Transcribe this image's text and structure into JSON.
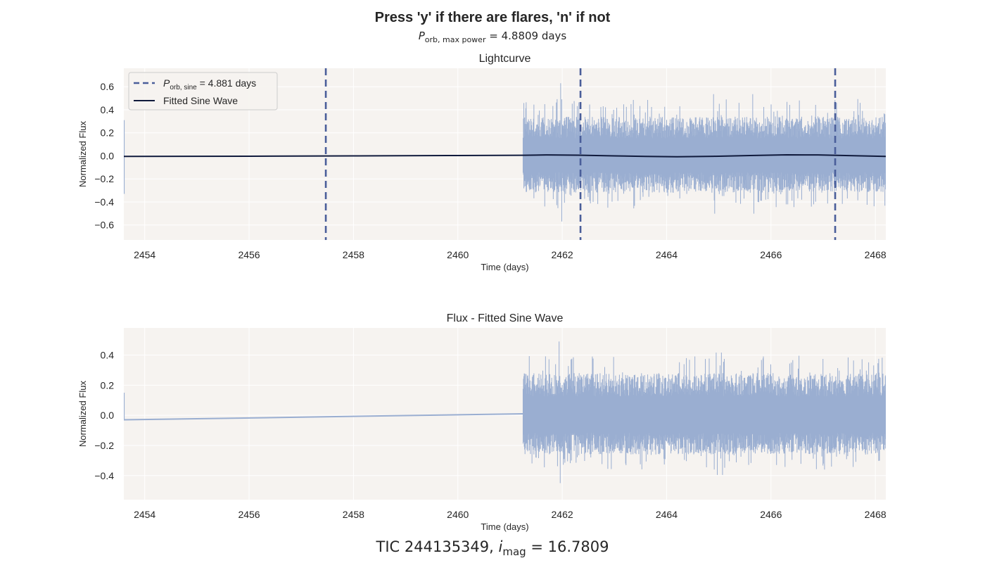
{
  "figure": {
    "suptitle": "Press 'y' if there are flares, 'n' if not",
    "subtitle": {
      "sym": "P",
      "sub": "orb, max power",
      "rest": " = 4.8809 days"
    },
    "footer": {
      "prefix": "TIC 244135349, ",
      "sym": "i",
      "sub": "mag",
      "rest": " = 16.7809"
    }
  },
  "colors": {
    "axes_bg": "#f6f3f0",
    "grid": "#ffffff",
    "flux": "#9aaed1",
    "sine": "#101a3c",
    "period_line": "#4a5e9a",
    "text": "#262626"
  },
  "chart_data": [
    {
      "type": "line",
      "title": "Lightcurve",
      "xlabel": "Time (days)",
      "ylabel": "Normalized Flux",
      "xlim": [
        2453.6,
        2468.2
      ],
      "ylim": [
        -0.73,
        0.76
      ],
      "xticks": [
        2454,
        2456,
        2458,
        2460,
        2462,
        2464,
        2466,
        2468
      ],
      "yticks": [
        -0.6,
        -0.4,
        -0.2,
        0.0,
        0.2,
        0.4,
        0.6
      ],
      "ytick_labels": [
        "−0.6",
        "−0.4",
        "−0.2",
        "0.0",
        "0.2",
        "0.4",
        "0.6"
      ],
      "grid": true,
      "legend_position": "upper-left",
      "series": [
        {
          "name": "Flux",
          "style": "noise-band",
          "x_start": 2461.25,
          "x_end": 2468.2,
          "typical_range": [
            -0.32,
            0.34
          ],
          "extreme_range": [
            -0.57,
            0.63
          ],
          "peak_x": [
            2461.97,
            2464.9,
            2465.65
          ],
          "early_stub": {
            "x": 2453.6,
            "range": [
              -0.33,
              0.31
            ]
          }
        },
        {
          "name": "Fitted Sine Wave",
          "style": "line",
          "x": [
            2453.6,
            2456,
            2458,
            2460,
            2461.25,
            2461.7,
            2462.3,
            2463.0,
            2463.6,
            2464.2,
            2464.9,
            2465.6,
            2466.3,
            2466.9,
            2467.5,
            2468.2
          ],
          "y": [
            -0.005,
            -0.003,
            0.0,
            0.003,
            0.005,
            0.008,
            0.006,
            0.0,
            -0.005,
            -0.008,
            -0.004,
            0.003,
            0.009,
            0.008,
            0.002,
            -0.005
          ]
        }
      ],
      "vlines": {
        "name": "P_orb,sine = 4.881 days",
        "x": [
          2457.47,
          2462.35,
          2467.23
        ]
      },
      "legend": [
        {
          "kind": "dash",
          "sym": "P",
          "sub": "orb, sine",
          "rest": " = 4.881 days"
        },
        {
          "kind": "solid",
          "label": "Fitted Sine Wave"
        }
      ]
    },
    {
      "type": "line",
      "title": "Flux - Fitted Sine Wave",
      "xlabel": "Time (days)",
      "ylabel": "Normalized Flux",
      "xlim": [
        2453.6,
        2468.2
      ],
      "ylim": [
        -0.56,
        0.58
      ],
      "xticks": [
        2454,
        2456,
        2458,
        2460,
        2462,
        2464,
        2466,
        2468
      ],
      "yticks": [
        -0.4,
        -0.2,
        0.0,
        0.2,
        0.4
      ],
      "ytick_labels": [
        "−0.4",
        "−0.2",
        "0.0",
        "0.2",
        "0.4"
      ],
      "grid": true,
      "series": [
        {
          "name": "Residual Flux",
          "style": "noise-band",
          "x_start": 2461.25,
          "x_end": 2468.2,
          "typical_range": [
            -0.26,
            0.28
          ],
          "extreme_range": [
            -0.45,
            0.49
          ],
          "peak_x": [
            2461.94,
            2464.95,
            2465.05
          ],
          "early_stub": {
            "x": 2453.6,
            "range": [
              -0.03,
              0.15
            ]
          },
          "gap_line": {
            "x": [
              2453.6,
              2461.25
            ],
            "y": [
              -0.03,
              0.01
            ]
          }
        }
      ]
    }
  ]
}
